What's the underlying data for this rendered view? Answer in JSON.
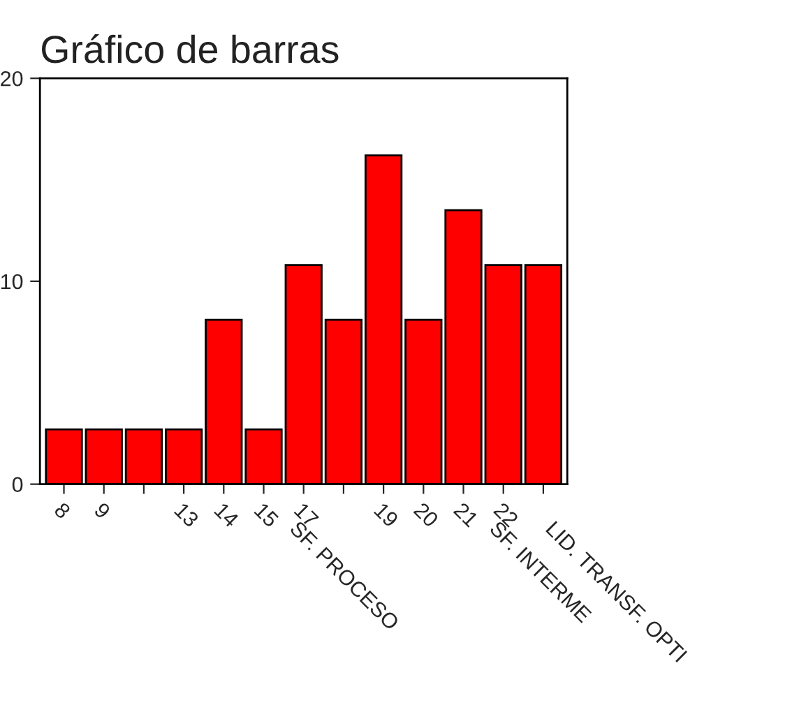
{
  "chart_data": {
    "type": "bar",
    "title": "Gráfico de barras",
    "categories": [
      "8",
      "9",
      null,
      "13",
      "14",
      "15",
      "17",
      null,
      "19",
      "20",
      "21",
      "22",
      null
    ],
    "values": [
      2.7,
      2.7,
      2.7,
      2.7,
      8.1,
      2.7,
      10.8,
      8.1,
      16.2,
      8.1,
      13.5,
      10.8,
      10.8
    ],
    "color": "#ff0000",
    "ylim": [
      0,
      20
    ],
    "yticks": [
      0,
      10,
      20
    ],
    "grid": false,
    "legend": false,
    "annotations": [
      "SF. PROCESO",
      "SF. INTERME",
      "LID. TRANSF. OPTI"
    ]
  }
}
